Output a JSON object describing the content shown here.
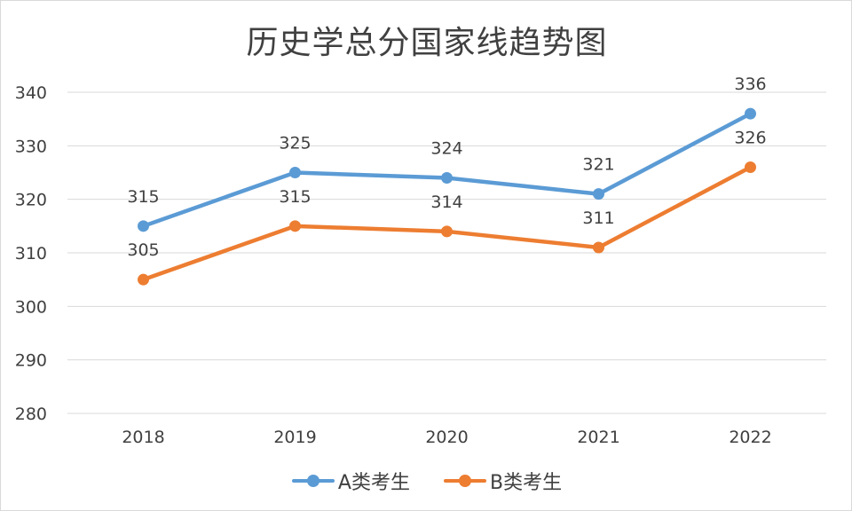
{
  "chart_data": {
    "type": "line",
    "title": "历史学总分国家线趋势图",
    "categories": [
      "2018",
      "2019",
      "2020",
      "2021",
      "2022"
    ],
    "ylim": [
      280,
      340
    ],
    "yticks": [
      280,
      290,
      300,
      310,
      320,
      330,
      340
    ],
    "grid": true,
    "legend_position": "bottom",
    "series": [
      {
        "name": "A类考生",
        "values": [
          315,
          325,
          324,
          321,
          336
        ],
        "color": "#5B9BD5"
      },
      {
        "name": "B类考生",
        "values": [
          305,
          315,
          314,
          311,
          326
        ],
        "color": "#ED7D31"
      }
    ],
    "xlabel": "",
    "ylabel": ""
  }
}
